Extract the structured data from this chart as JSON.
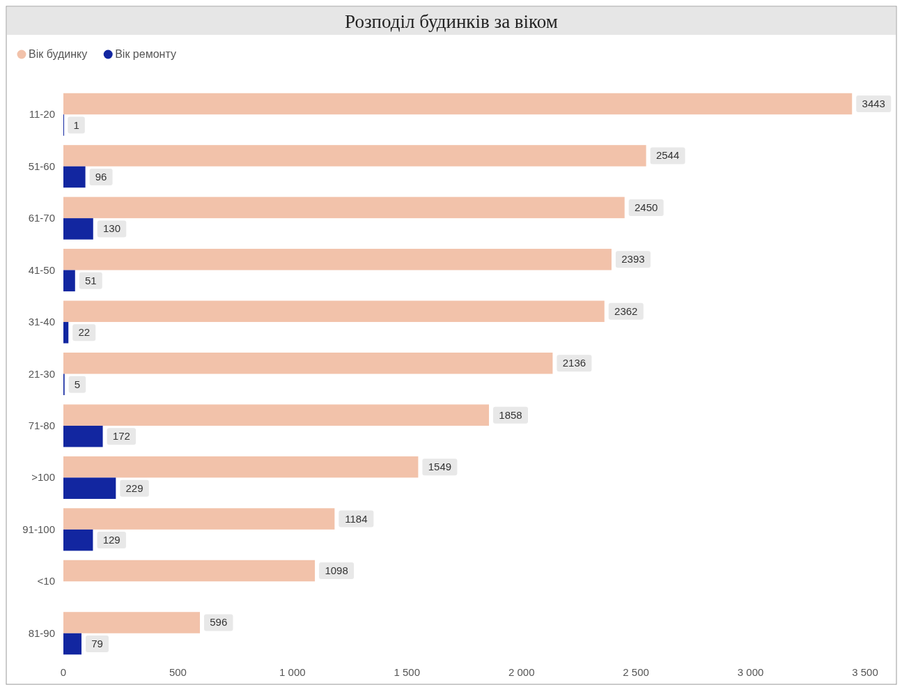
{
  "chart_data": {
    "type": "bar",
    "orientation": "horizontal",
    "title": "Розподіл будинків за віком",
    "categories": [
      "11-20",
      "51-60",
      "61-70",
      "41-50",
      "31-40",
      "21-30",
      "71-80",
      ">100",
      "91-100",
      "<10",
      "81-90"
    ],
    "series": [
      {
        "name": "Вік будинку",
        "color": "#f2c2aa",
        "values": [
          3443,
          2544,
          2450,
          2393,
          2362,
          2136,
          1858,
          1549,
          1184,
          1098,
          596
        ]
      },
      {
        "name": "Вік ремонту",
        "color": "#1226a0",
        "values": [
          1,
          96,
          130,
          51,
          22,
          5,
          172,
          229,
          129,
          null,
          79
        ]
      }
    ],
    "xlim": [
      0,
      3500
    ],
    "xticks": [
      0,
      500,
      {
        "value": 1000,
        "label": "1 000"
      },
      {
        "value": 1500,
        "label": "1 500"
      },
      {
        "value": 2000,
        "label": "2 000"
      },
      {
        "value": 2500,
        "label": "2 500"
      },
      {
        "value": 3000,
        "label": "3 000"
      },
      {
        "value": 3500,
        "label": "3 500"
      }
    ],
    "grid": false,
    "legend": "top left",
    "data_labels": true
  }
}
